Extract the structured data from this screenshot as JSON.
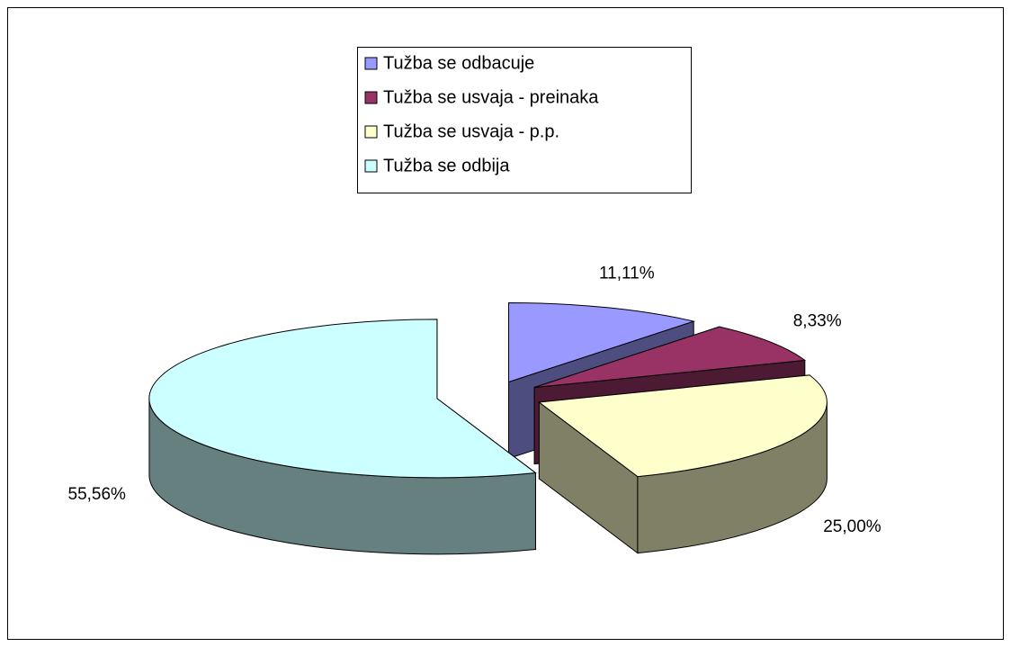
{
  "chart_data": {
    "type": "pie",
    "categories": [
      "Tužba se odbacuje",
      "Tužba se usvaja - preinaka",
      "Tužba se usvaja - p.p.",
      "Tužba se odbija"
    ],
    "values": [
      11.11,
      8.33,
      25.0,
      55.56
    ],
    "value_labels": [
      "11,11%",
      "8,33%",
      "25,00%",
      "55,56%"
    ],
    "colors": [
      "#9999ff",
      "#993366",
      "#ffffcc",
      "#ccffff"
    ],
    "side_colors": [
      "#4d4d80",
      "#4d1a33",
      "#808066",
      "#668080"
    ],
    "legend": "top"
  }
}
